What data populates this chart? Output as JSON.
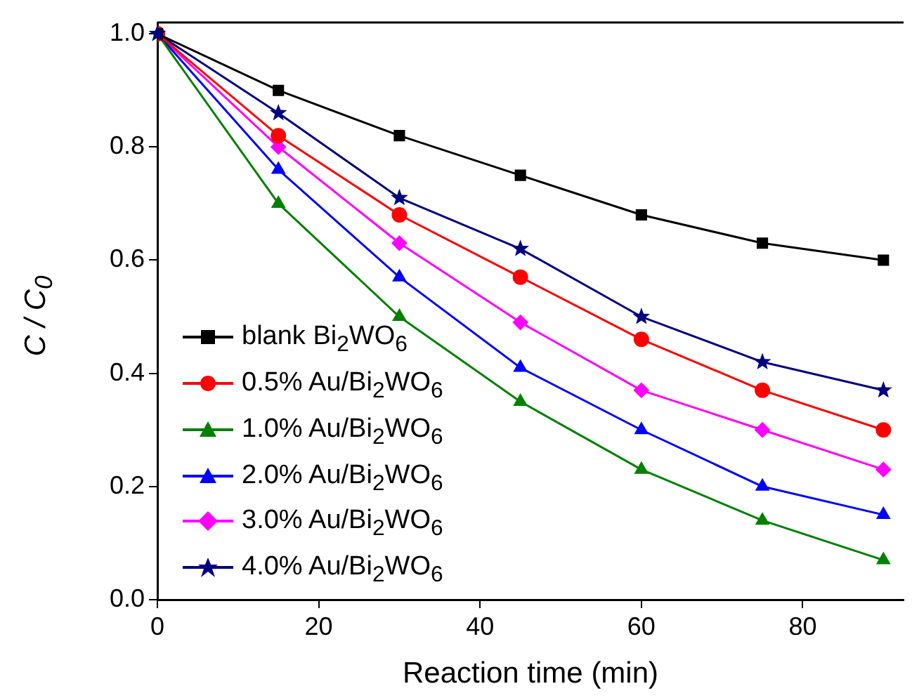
{
  "chart_data": {
    "type": "line",
    "xlabel": "Reaction time (min)",
    "ylabel": "C / C$_{0}$",
    "x": [
      0,
      15,
      30,
      45,
      60,
      75,
      90
    ],
    "series": [
      {
        "name": "blank Bi$_{2}$WO$_{6}$",
        "color": "#000000",
        "marker": "square",
        "values": [
          1,
          0.9,
          0.82,
          0.75,
          0.68,
          0.63,
          0.6
        ]
      },
      {
        "name": "0.5% Au/Bi$_{2}$WO$_{6}$",
        "color": "#ff0000",
        "marker": "circle",
        "values": [
          1,
          0.82,
          0.68,
          0.57,
          0.46,
          0.37,
          0.3
        ]
      },
      {
        "name": "1.0% Au/Bi$_{2}$WO$_{6}$",
        "color": "#008000",
        "marker": "triangle",
        "values": [
          1,
          0.7,
          0.5,
          0.35,
          0.23,
          0.14,
          0.07
        ]
      },
      {
        "name": "2.0% Au/Bi$_{2}$WO$_{6}$",
        "color": "#0000ff",
        "marker": "triangle",
        "values": [
          1,
          0.76,
          0.57,
          0.41,
          0.3,
          0.2,
          0.15
        ]
      },
      {
        "name": "3.0% Au/Bi$_{2}$WO$_{6}$",
        "color": "#ff00ff",
        "marker": "diamond",
        "values": [
          1,
          0.8,
          0.63,
          0.49,
          0.37,
          0.3,
          0.23
        ]
      },
      {
        "name": "4.0% Au/Bi$_{2}$WO$_{6}$",
        "color": "#000080",
        "marker": "star",
        "values": [
          1,
          0.86,
          0.71,
          0.62,
          0.5,
          0.42,
          0.37
        ]
      }
    ],
    "xlim": [
      0,
      92.5
    ],
    "xticks": [
      0,
      20,
      40,
      60,
      80
    ],
    "ylim": [
      0,
      1.02
    ],
    "yticks": [
      {
        "value": 0,
        "label": "0.0"
      },
      0.2,
      0.4,
      0.6,
      0.8,
      {
        "value": 1,
        "label": "1.0"
      }
    ],
    "grid": false,
    "legend": "bottom left",
    "line_style": "solid"
  }
}
